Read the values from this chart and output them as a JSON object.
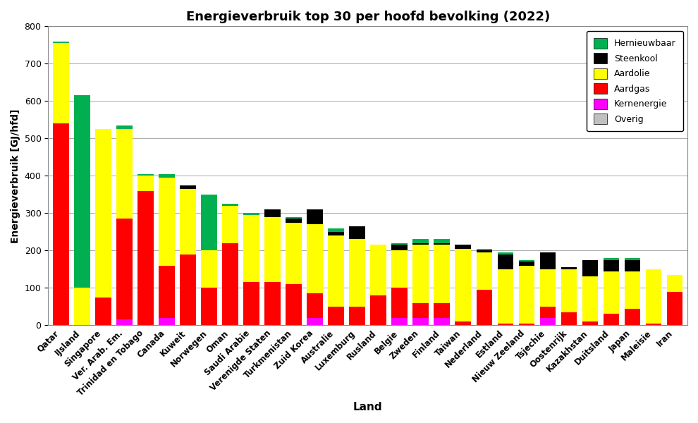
{
  "title": "Energieverbruik top 30 per hoofd bevolking (2022)",
  "xlabel": "Land",
  "ylabel": "Energieverbruik [GJ/hfd]",
  "ylim": [
    0,
    800
  ],
  "yticks": [
    0,
    100,
    200,
    300,
    400,
    500,
    600,
    700,
    800
  ],
  "categories": [
    "Qatar",
    "IJsland",
    "Singapore",
    "Ver. Arab. Em.",
    "Trinidad en Tobago",
    "Canada",
    "Kuweit",
    "Norwegen",
    "Oman",
    "Saudi Arabie",
    "Verenigde Staten",
    "Turkmenistan",
    "Zuid Korea",
    "Australie",
    "Luxemburg",
    "Rusland",
    "Belgie",
    "Zweden",
    "Finland",
    "Taiwan",
    "Nederland",
    "Estland",
    "Nieuw Zeeland",
    "Tsjechie",
    "Oostenrijk",
    "Kazakhstan",
    "Duitsland",
    "Japan",
    "Maleisie",
    "Iran"
  ],
  "energy_types": [
    "Overig",
    "Kernenergie",
    "Aardgas",
    "Aardolie",
    "Steenkool",
    "Hernieuwbaar"
  ],
  "colors": {
    "Overig": "#c0c0c0",
    "Kernenergie": "#ff00ff",
    "Aardgas": "#ff0000",
    "Aardolie": "#ffff00",
    "Steenkool": "#000000",
    "Hernieuwbaar": "#00b050"
  },
  "data": {
    "Overig": [
      0,
      0,
      0,
      0,
      0,
      0,
      0,
      0,
      0,
      0,
      0,
      0,
      0,
      0,
      0,
      0,
      0,
      0,
      0,
      0,
      0,
      0,
      0,
      0,
      0,
      0,
      0,
      0,
      0,
      0
    ],
    "Kernenergie": [
      0,
      0,
      0,
      15,
      0,
      20,
      0,
      0,
      0,
      0,
      0,
      0,
      20,
      0,
      0,
      0,
      20,
      20,
      20,
      0,
      0,
      0,
      0,
      20,
      0,
      0,
      0,
      0,
      0,
      0
    ],
    "Aardgas": [
      540,
      0,
      75,
      270,
      360,
      140,
      190,
      100,
      220,
      115,
      115,
      110,
      65,
      50,
      50,
      80,
      80,
      40,
      40,
      10,
      95,
      5,
      5,
      30,
      35,
      10,
      30,
      45,
      5,
      90
    ],
    "Aardolie": [
      215,
      100,
      450,
      240,
      40,
      235,
      175,
      100,
      100,
      180,
      175,
      165,
      185,
      190,
      180,
      135,
      100,
      155,
      155,
      195,
      100,
      145,
      155,
      100,
      115,
      120,
      115,
      100,
      145,
      45
    ],
    "Steenkool": [
      0,
      0,
      0,
      0,
      0,
      0,
      10,
      0,
      0,
      0,
      20,
      10,
      40,
      10,
      35,
      0,
      15,
      5,
      5,
      10,
      5,
      40,
      10,
      45,
      5,
      45,
      30,
      30,
      0,
      0
    ],
    "Hernieuwbaar": [
      5,
      515,
      0,
      10,
      5,
      10,
      0,
      150,
      5,
      5,
      0,
      5,
      0,
      10,
      0,
      0,
      5,
      10,
      10,
      0,
      5,
      5,
      5,
      0,
      0,
      0,
      5,
      5,
      0,
      0
    ]
  }
}
